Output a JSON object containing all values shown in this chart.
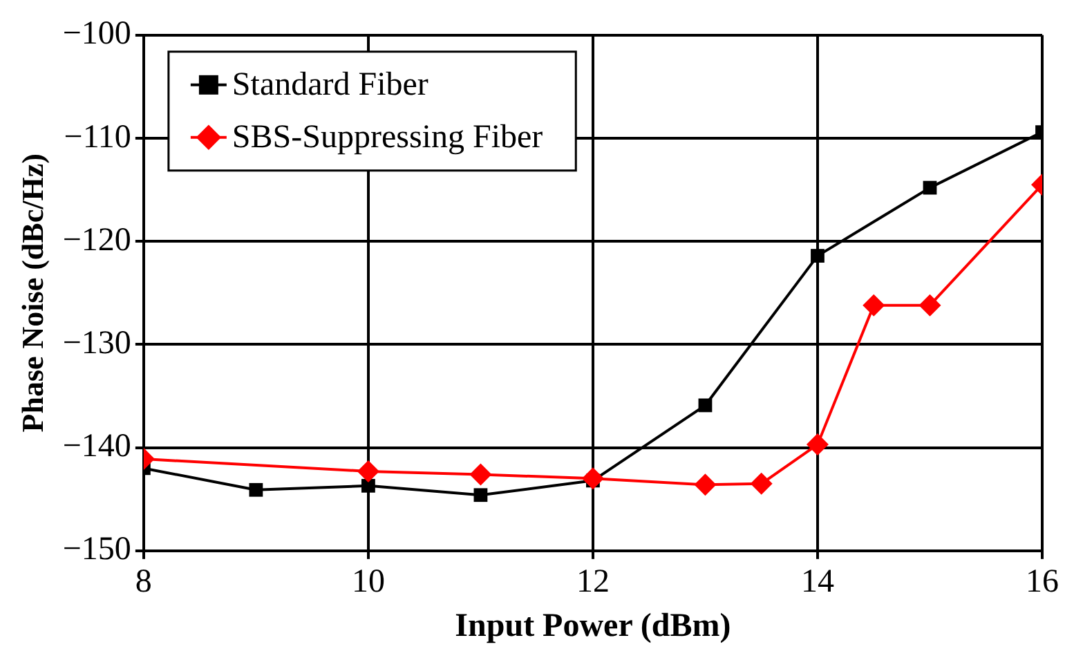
{
  "chart_data": {
    "type": "line",
    "xlabel": "Input Power (dBm)",
    "ylabel": "Phase Noise (dBc/Hz)",
    "xlim": [
      8,
      16
    ],
    "xticks": [
      8,
      10,
      12,
      14,
      16
    ],
    "ylim": [
      -150,
      -100
    ],
    "yticks": [
      -150,
      -140,
      -130,
      -120,
      -110,
      -100
    ],
    "grid": true,
    "legend": "top left",
    "line_style": "solid",
    "series": [
      {
        "name": "Standard Fiber",
        "color": "#000000",
        "marker": "square",
        "x": [
          8,
          9,
          10,
          11,
          12,
          13,
          14,
          15,
          16
        ],
        "values": [
          -142.0,
          -144.1,
          -143.7,
          -144.6,
          -143.2,
          -135.9,
          -121.4,
          -114.8,
          -109.4
        ]
      },
      {
        "name": "SBS-Suppressing Fiber",
        "color": "#ff0000",
        "marker": "diamond",
        "x": [
          8,
          10,
          11,
          12,
          13,
          13.5,
          14,
          14.5,
          15,
          16
        ],
        "values": [
          -141.1,
          -142.3,
          -142.6,
          -143.0,
          -143.6,
          -143.5,
          -139.7,
          -126.2,
          -126.2,
          -114.5
        ]
      }
    ]
  }
}
